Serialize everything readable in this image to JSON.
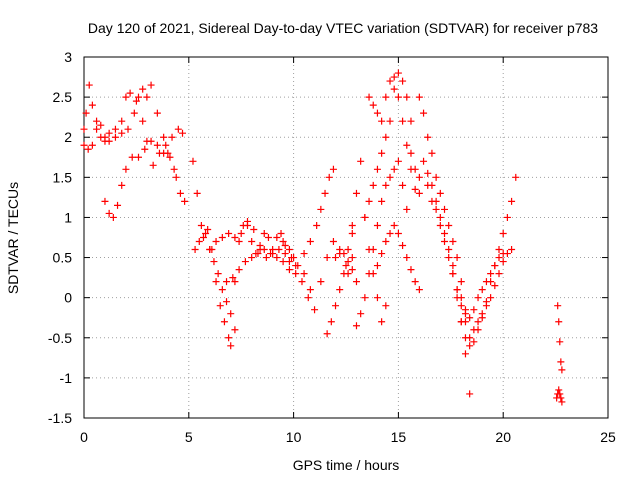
{
  "colors": {
    "series": "#ff0000",
    "grid": "#a0a0a0",
    "axis": "#000000",
    "background": "#ffffff"
  },
  "chart_data": {
    "type": "scatter",
    "marker": "plus",
    "title": "Day 120 of 2021, Sidereal Day-to-day VTEC variation (SDTVAR) for receiver p783",
    "xlabel": "GPS time / hours",
    "ylabel": "SDTVAR / TECUs",
    "xlim": [
      0,
      25
    ],
    "ylim": [
      -1.5,
      3
    ],
    "xticks": [
      0,
      5,
      10,
      15,
      20,
      25
    ],
    "xtick_labels": [
      "0",
      "5",
      "10",
      "15",
      "20",
      "25"
    ],
    "yticks": [
      -1.5,
      -1,
      -0.5,
      0,
      0.5,
      1,
      1.5,
      2,
      2.5,
      3
    ],
    "ytick_labels": [
      "-1.5",
      "-1",
      "-0.5",
      "0",
      "0.5",
      "1",
      "1.5",
      "2",
      "2.5",
      "3"
    ],
    "grid": true,
    "series": [
      {
        "name": "SDTVAR",
        "tracks": [
          {
            "x": [
              0,
              0.1,
              0.25,
              0.4,
              0.6,
              0.8,
              1.0,
              1.2,
              1.5,
              1.8,
              2.0,
              2.2,
              2.5,
              2.8,
              3.0,
              3.2,
              3.5,
              3.8,
              4.0,
              4.3,
              4.6,
              4.8
            ],
            "y": [
              1.9,
              2.3,
              2.65,
              2.4,
              2.1,
              2.0,
              1.95,
              2.05,
              2.1,
              2.2,
              2.5,
              2.55,
              2.45,
              2.6,
              2.5,
              2.65,
              2.3,
              2.0,
              1.8,
              1.6,
              1.3,
              1.2
            ]
          },
          {
            "x": [
              0,
              0.2,
              0.4,
              0.6,
              0.8,
              1.0,
              1.2,
              1.5,
              1.8,
              2.1,
              2.4,
              2.6,
              2.8,
              3.0,
              3.3,
              3.6,
              3.9,
              4.2,
              4.5,
              4.7
            ],
            "y": [
              2.1,
              1.85,
              1.9,
              2.2,
              2.15,
              2.0,
              1.95,
              2.0,
              2.05,
              2.1,
              2.3,
              2.5,
              2.2,
              1.95,
              1.65,
              1.8,
              1.9,
              2.0,
              2.1,
              2.05
            ]
          },
          {
            "x": [
              1.0,
              1.2,
              1.4,
              1.6,
              1.8,
              2.0,
              2.3,
              2.6,
              2.9,
              3.2,
              3.5,
              3.8,
              4.1,
              4.4
            ],
            "y": [
              1.2,
              1.05,
              1.0,
              1.15,
              1.4,
              1.6,
              1.75,
              1.75,
              1.85,
              1.95,
              1.9,
              1.8,
              1.75,
              1.5
            ]
          },
          {
            "x": [
              5.2,
              5.4,
              5.6,
              5.8,
              6.0,
              6.2,
              6.4,
              6.6,
              6.8,
              7.0,
              7.2,
              7.4,
              7.6,
              7.8,
              8.0,
              8.2,
              8.4,
              8.6,
              8.8,
              9.0,
              9.2,
              9.4,
              9.6,
              9.8,
              10.0
            ],
            "y": [
              1.7,
              1.3,
              0.9,
              0.8,
              0.6,
              0.45,
              0.3,
              0.1,
              -0.05,
              -0.2,
              0.2,
              0.7,
              0.9,
              0.95,
              0.7,
              0.55,
              0.65,
              0.8,
              0.75,
              0.6,
              0.75,
              0.8,
              0.55,
              0.45,
              0.5
            ]
          },
          {
            "x": [
              5.3,
              5.5,
              5.7,
              5.9,
              6.1,
              6.3,
              6.5,
              6.7,
              6.9,
              7.0,
              7.2
            ],
            "y": [
              0.6,
              0.7,
              0.75,
              0.85,
              0.6,
              0.2,
              -0.1,
              -0.3,
              -0.5,
              -0.6,
              -0.4
            ]
          },
          {
            "x": [
              6.0,
              6.3,
              6.6,
              6.9,
              7.2,
              7.5,
              7.8,
              8.1,
              8.4,
              8.7,
              9.0,
              9.3,
              9.6,
              9.9,
              10.2,
              10.5,
              10.8
            ],
            "y": [
              0.6,
              0.7,
              0.75,
              0.8,
              0.75,
              0.8,
              0.9,
              0.85,
              0.6,
              0.5,
              0.55,
              0.6,
              0.65,
              0.5,
              0.4,
              0.3,
              0.1
            ]
          },
          {
            "x": [
              6.8,
              7.1,
              7.4,
              7.7,
              8.0,
              8.3,
              8.6,
              8.9,
              9.2,
              9.5,
              9.8,
              10.1
            ],
            "y": [
              0.2,
              0.25,
              0.35,
              0.45,
              0.5,
              0.55,
              0.6,
              0.55,
              0.5,
              0.45,
              0.35,
              0.3
            ]
          },
          {
            "x": [
              9.5,
              9.8,
              10.1,
              10.4,
              10.7,
              11.0,
              11.3,
              11.6,
              11.9,
              12.2,
              12.5,
              12.8
            ],
            "y": [
              0.7,
              0.6,
              0.4,
              0.2,
              0.0,
              -0.15,
              0.2,
              0.5,
              0.7,
              0.55,
              0.4,
              0.5
            ]
          },
          {
            "x": [
              10.5,
              10.8,
              11.1,
              11.3,
              11.5,
              11.7,
              11.9
            ],
            "y": [
              0.55,
              0.7,
              0.9,
              1.1,
              1.3,
              1.5,
              1.6
            ]
          },
          {
            "x": [
              11.6,
              11.8,
              12.0,
              12.2,
              12.4,
              12.6,
              12.8
            ],
            "y": [
              -0.45,
              -0.3,
              -0.1,
              0.1,
              0.3,
              0.6,
              0.9
            ]
          },
          {
            "x": [
              12.0,
              12.2,
              12.4,
              12.6,
              12.8,
              13.0
            ],
            "y": [
              0.5,
              0.6,
              0.55,
              0.45,
              0.35,
              0.2
            ]
          },
          {
            "x": [
              12.6,
              12.8,
              13.0,
              13.2,
              13.4,
              13.6,
              13.8,
              14.0,
              14.2,
              14.4
            ],
            "y": [
              0.3,
              0.8,
              1.3,
              1.7,
              1.0,
              0.6,
              0.3,
              0.0,
              -0.3,
              -0.1
            ]
          },
          {
            "x": [
              13.0,
              13.2,
              13.4,
              13.6,
              13.8,
              14.0,
              14.2,
              14.4,
              14.6,
              14.8,
              15.0,
              15.2,
              15.4
            ],
            "y": [
              -0.35,
              -0.2,
              0.0,
              0.3,
              0.6,
              0.9,
              1.2,
              1.4,
              1.5,
              1.6,
              1.7,
              1.4,
              1.1
            ]
          },
          {
            "x": [
              13.4,
              13.6,
              13.8,
              14.0,
              14.2,
              14.4,
              14.6,
              14.8,
              15.0,
              15.2,
              15.4,
              15.6
            ],
            "y": [
              1.0,
              1.2,
              1.4,
              1.6,
              1.8,
              2.0,
              2.2,
              2.6,
              2.8,
              2.7,
              2.5,
              2.2
            ]
          },
          {
            "x": [
              13.6,
              13.8,
              14.0,
              14.2,
              14.4,
              14.6,
              14.8,
              15.0,
              15.2,
              15.4,
              15.6,
              15.8,
              16.0
            ],
            "y": [
              2.5,
              2.4,
              2.3,
              2.2,
              2.5,
              2.7,
              2.75,
              2.5,
              2.2,
              1.9,
              1.6,
              1.35,
              1.3
            ]
          },
          {
            "x": [
              14.0,
              14.2,
              14.4,
              14.6,
              14.8,
              15.0,
              15.2,
              15.4,
              15.6,
              15.8,
              16.0
            ],
            "y": [
              0.4,
              0.55,
              0.7,
              0.8,
              0.9,
              0.8,
              0.65,
              0.5,
              0.35,
              0.2,
              0.1
            ]
          },
          {
            "x": [
              15.6,
              15.8,
              16.0,
              16.2,
              16.4,
              16.6,
              16.8,
              17.0,
              17.2,
              17.4,
              17.6,
              17.8,
              18.0,
              18.2,
              18.4
            ],
            "y": [
              1.8,
              1.6,
              1.5,
              1.7,
              1.55,
              1.4,
              1.2,
              1.0,
              0.8,
              0.6,
              0.4,
              0.1,
              -0.3,
              -0.7,
              -1.2
            ]
          },
          {
            "x": [
              16.0,
              16.2,
              16.4,
              16.6,
              16.8,
              17.0,
              17.2,
              17.4,
              17.6,
              17.8,
              18.0,
              18.2
            ],
            "y": [
              2.5,
              2.3,
              2.0,
              1.8,
              1.5,
              1.3,
              1.1,
              0.9,
              0.7,
              0.5,
              0.2,
              -0.2
            ]
          },
          {
            "x": [
              16.4,
              16.6,
              16.8,
              17.0,
              17.2,
              17.4,
              17.6,
              17.8,
              18.0,
              18.2,
              18.4,
              18.6,
              18.8,
              19.0,
              19.2,
              19.4,
              19.6,
              19.8,
              20.0,
              20.2,
              20.4
            ],
            "y": [
              1.4,
              1.2,
              1.1,
              0.9,
              0.7,
              0.5,
              0.3,
              0.0,
              -0.3,
              -0.5,
              -0.6,
              -0.4,
              -0.3,
              -0.2,
              -0.1,
              0.0,
              0.15,
              0.3,
              0.45,
              0.55,
              0.6
            ]
          },
          {
            "x": [
              17.6,
              17.8,
              18.0,
              18.2,
              18.4,
              18.6,
              18.8,
              19.0,
              19.2,
              19.4,
              19.6,
              19.8,
              20.0,
              20.2,
              20.4,
              20.6
            ],
            "y": [
              0.3,
              0.1,
              -0.1,
              -0.3,
              -0.5,
              -0.55,
              -0.4,
              -0.25,
              -0.05,
              0.2,
              0.4,
              0.6,
              0.8,
              1.0,
              1.2,
              1.5
            ]
          },
          {
            "x": [
              18.0,
              18.2,
              18.4,
              18.6,
              18.8,
              19.0,
              19.2,
              19.4,
              19.6,
              19.8,
              20.0
            ],
            "y": [
              0.0,
              -0.15,
              -0.25,
              -0.15,
              0.0,
              0.1,
              0.2,
              0.3,
              0.4,
              0.5,
              0.55
            ]
          },
          {
            "x": [
              22.6,
              22.65,
              22.7,
              22.75,
              22.8
            ],
            "y": [
              -0.1,
              -0.3,
              -0.55,
              -0.8,
              -0.9
            ]
          },
          {
            "x": [
              22.55,
              22.6,
              22.65,
              22.7,
              22.75,
              22.8
            ],
            "y": [
              -1.25,
              -1.2,
              -1.15,
              -1.2,
              -1.25,
              -1.3
            ]
          }
        ]
      }
    ]
  }
}
